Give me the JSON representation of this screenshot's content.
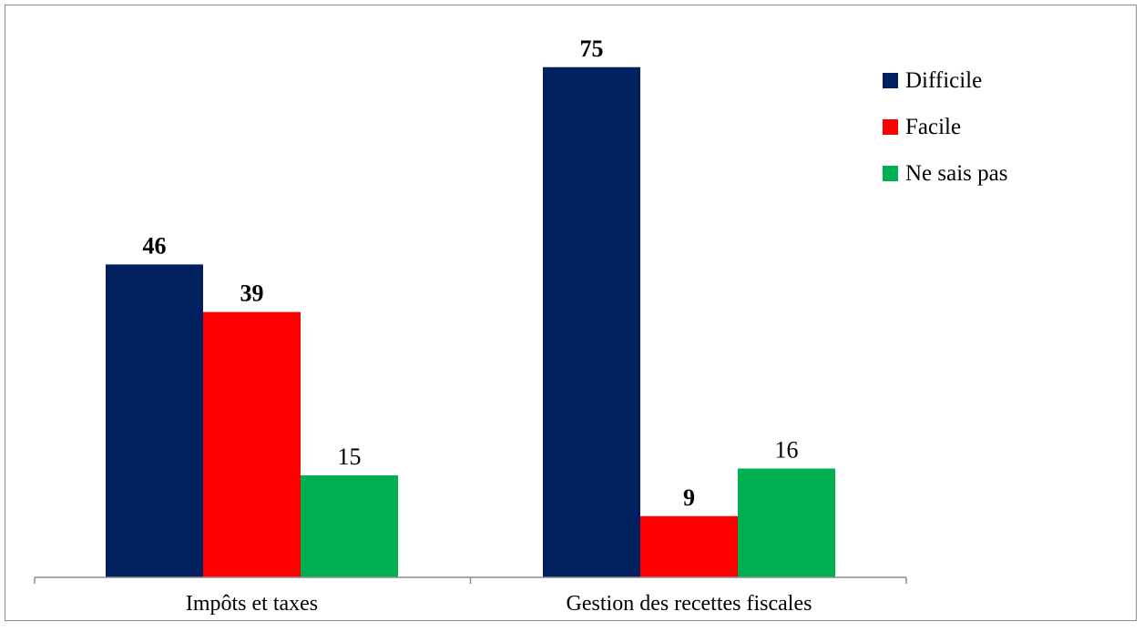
{
  "chart_data": {
    "type": "bar",
    "categories": [
      "Impôts et taxes",
      "Gestion des recettes fiscales"
    ],
    "series": [
      {
        "name": "Difficile",
        "values": [
          46,
          75
        ],
        "color": "#002060"
      },
      {
        "name": "Facile",
        "values": [
          39,
          9
        ],
        "color": "#ff0000"
      },
      {
        "name": "Ne sais pas",
        "values": [
          15,
          16
        ],
        "color": "#00b050"
      }
    ],
    "data_labels": [
      [
        "46",
        "75"
      ],
      [
        "39",
        "9"
      ],
      [
        "15",
        "16"
      ]
    ],
    "bold_labels": [
      [
        true,
        true
      ],
      [
        true,
        true
      ],
      [
        false,
        false
      ]
    ],
    "title": "",
    "xlabel": "",
    "ylabel": "",
    "ylim": [
      0,
      80
    ],
    "grid": false,
    "legend_position": "top-right"
  }
}
